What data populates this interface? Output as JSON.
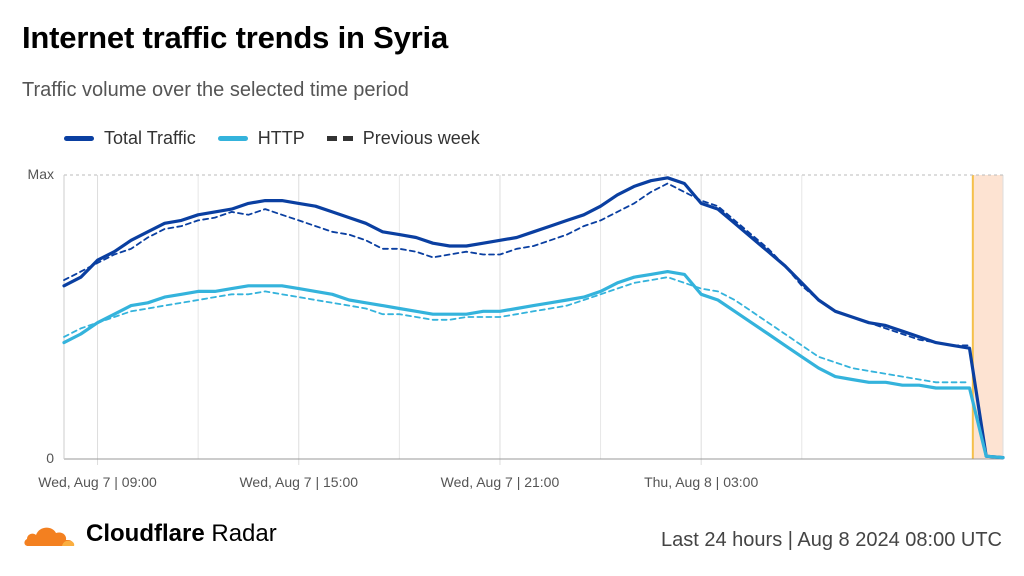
{
  "header": {
    "title": "Internet traffic trends in Syria",
    "subtitle": "Traffic volume over the selected time period"
  },
  "legend": {
    "total": "Total Traffic",
    "http": "HTTP",
    "previous": "Previous week"
  },
  "colors": {
    "total": "#0a3fa1",
    "http": "#34b3dc",
    "shade": "#fde3d2",
    "shade_edge": "#f5c04a",
    "grid": "#bbbbbb"
  },
  "footer": {
    "brand_bold": "Cloudflare",
    "brand_light": "Radar",
    "period": "Last 24 hours | Aug 8 2024 08:00 UTC"
  },
  "chart_data": {
    "type": "line",
    "x_label": "",
    "y_label": "",
    "y_ticks": [
      "Max",
      "0"
    ],
    "y_range": [
      0,
      100
    ],
    "x_range_hours": [
      8,
      31.5
    ],
    "x_ticks": [
      {
        "hour": 9,
        "label": "Wed, Aug 7 | 09:00"
      },
      {
        "hour": 15,
        "label": "Wed, Aug 7 | 15:00"
      },
      {
        "hour": 21,
        "label": "Wed, Aug 7 | 21:00"
      },
      {
        "hour": 27,
        "label": "Thu, Aug 8 | 03:00"
      }
    ],
    "minor_grid_hours": [
      12,
      18,
      24,
      30
    ],
    "shaded_region_hours": [
      29,
      31.5
    ],
    "series": [
      {
        "name": "Total Traffic",
        "style": "solid",
        "points": [
          [
            8,
            61
          ],
          [
            8.5,
            64
          ],
          [
            9,
            70
          ],
          [
            9.5,
            73
          ],
          [
            10,
            77
          ],
          [
            10.5,
            80
          ],
          [
            11,
            83
          ],
          [
            11.5,
            84
          ],
          [
            12,
            86
          ],
          [
            12.5,
            87
          ],
          [
            13,
            88
          ],
          [
            13.5,
            90
          ],
          [
            14,
            91
          ],
          [
            14.5,
            91
          ],
          [
            15,
            90
          ],
          [
            15.5,
            89
          ],
          [
            16,
            87
          ],
          [
            16.5,
            85
          ],
          [
            17,
            83
          ],
          [
            17.5,
            80
          ],
          [
            18,
            79
          ],
          [
            18.5,
            78
          ],
          [
            19,
            76
          ],
          [
            19.5,
            75
          ],
          [
            20,
            75
          ],
          [
            20.5,
            76
          ],
          [
            21,
            77
          ],
          [
            21.5,
            78
          ],
          [
            22,
            80
          ],
          [
            22.5,
            82
          ],
          [
            23,
            84
          ],
          [
            23.5,
            86
          ],
          [
            24,
            89
          ],
          [
            24.5,
            93
          ],
          [
            25,
            96
          ],
          [
            25.5,
            98
          ],
          [
            26,
            99
          ],
          [
            26.5,
            97
          ],
          [
            27,
            90
          ],
          [
            27.5,
            88
          ],
          [
            28,
            83
          ],
          [
            28.5,
            78
          ],
          [
            29,
            73
          ],
          [
            29.5,
            68
          ],
          [
            30,
            62
          ],
          [
            30.5,
            56
          ],
          [
            31,
            52
          ],
          [
            31.5,
            50
          ],
          [
            32,
            48
          ],
          [
            32.5,
            47
          ],
          [
            33,
            45
          ],
          [
            33.5,
            43
          ],
          [
            34,
            41
          ],
          [
            34.5,
            40
          ],
          [
            35,
            39
          ],
          [
            35.5,
            1
          ],
          [
            36,
            0.5
          ]
        ]
      },
      {
        "name": "HTTP",
        "style": "solid",
        "points": [
          [
            8,
            41
          ],
          [
            8.5,
            44
          ],
          [
            9,
            48
          ],
          [
            9.5,
            51
          ],
          [
            10,
            54
          ],
          [
            10.5,
            55
          ],
          [
            11,
            57
          ],
          [
            11.5,
            58
          ],
          [
            12,
            59
          ],
          [
            12.5,
            59
          ],
          [
            13,
            60
          ],
          [
            13.5,
            61
          ],
          [
            14,
            61
          ],
          [
            14.5,
            61
          ],
          [
            15,
            60
          ],
          [
            15.5,
            59
          ],
          [
            16,
            58
          ],
          [
            16.5,
            56
          ],
          [
            17,
            55
          ],
          [
            17.5,
            54
          ],
          [
            18,
            53
          ],
          [
            18.5,
            52
          ],
          [
            19,
            51
          ],
          [
            19.5,
            51
          ],
          [
            20,
            51
          ],
          [
            20.5,
            52
          ],
          [
            21,
            52
          ],
          [
            21.5,
            53
          ],
          [
            22,
            54
          ],
          [
            22.5,
            55
          ],
          [
            23,
            56
          ],
          [
            23.5,
            57
          ],
          [
            24,
            59
          ],
          [
            24.5,
            62
          ],
          [
            25,
            64
          ],
          [
            25.5,
            65
          ],
          [
            26,
            66
          ],
          [
            26.5,
            65
          ],
          [
            27,
            58
          ],
          [
            27.5,
            56
          ],
          [
            28,
            52
          ],
          [
            28.5,
            48
          ],
          [
            29,
            44
          ],
          [
            29.5,
            40
          ],
          [
            30,
            36
          ],
          [
            30.5,
            32
          ],
          [
            31,
            29
          ],
          [
            31.5,
            28
          ],
          [
            32,
            27
          ],
          [
            32.5,
            27
          ],
          [
            33,
            26
          ],
          [
            33.5,
            26
          ],
          [
            34,
            25
          ],
          [
            34.5,
            25
          ],
          [
            35,
            25
          ],
          [
            35.5,
            1
          ],
          [
            36,
            0.5
          ]
        ]
      },
      {
        "name": "Previous week",
        "style": "dashed",
        "points": [
          [
            8,
            63
          ],
          [
            8.5,
            66
          ],
          [
            9,
            69
          ],
          [
            9.5,
            72
          ],
          [
            10,
            74
          ],
          [
            10.5,
            78
          ],
          [
            11,
            81
          ],
          [
            11.5,
            82
          ],
          [
            12,
            84
          ],
          [
            12.5,
            85
          ],
          [
            13,
            87
          ],
          [
            13.5,
            86
          ],
          [
            14,
            88
          ],
          [
            14.5,
            86
          ],
          [
            15,
            84
          ],
          [
            15.5,
            82
          ],
          [
            16,
            80
          ],
          [
            16.5,
            79
          ],
          [
            17,
            77
          ],
          [
            17.5,
            74
          ],
          [
            18,
            74
          ],
          [
            18.5,
            73
          ],
          [
            19,
            71
          ],
          [
            19.5,
            72
          ],
          [
            20,
            73
          ],
          [
            20.5,
            72
          ],
          [
            21,
            72
          ],
          [
            21.5,
            74
          ],
          [
            22,
            75
          ],
          [
            22.5,
            77
          ],
          [
            23,
            79
          ],
          [
            23.5,
            82
          ],
          [
            24,
            84
          ],
          [
            24.5,
            87
          ],
          [
            25,
            90
          ],
          [
            25.5,
            94
          ],
          [
            26,
            97
          ],
          [
            26.5,
            94
          ],
          [
            27,
            91
          ],
          [
            27.5,
            89
          ],
          [
            28,
            84
          ],
          [
            28.5,
            79
          ],
          [
            29,
            74
          ],
          [
            29.5,
            68
          ],
          [
            30,
            61
          ],
          [
            30.5,
            56
          ],
          [
            31,
            52
          ],
          [
            31.5,
            50
          ],
          [
            32,
            48
          ],
          [
            32.5,
            46
          ],
          [
            33,
            44
          ],
          [
            33.5,
            42
          ],
          [
            34,
            41
          ],
          [
            34.5,
            40
          ],
          [
            35,
            40
          ]
        ]
      },
      {
        "name": "Previous week (HTTP)",
        "style": "dashed",
        "points": [
          [
            8,
            43
          ],
          [
            8.5,
            46
          ],
          [
            9,
            48
          ],
          [
            9.5,
            50
          ],
          [
            10,
            52
          ],
          [
            10.5,
            53
          ],
          [
            11,
            54
          ],
          [
            11.5,
            55
          ],
          [
            12,
            56
          ],
          [
            12.5,
            57
          ],
          [
            13,
            58
          ],
          [
            13.5,
            58
          ],
          [
            14,
            59
          ],
          [
            14.5,
            58
          ],
          [
            15,
            57
          ],
          [
            15.5,
            56
          ],
          [
            16,
            55
          ],
          [
            16.5,
            54
          ],
          [
            17,
            53
          ],
          [
            17.5,
            51
          ],
          [
            18,
            51
          ],
          [
            18.5,
            50
          ],
          [
            19,
            49
          ],
          [
            19.5,
            49
          ],
          [
            20,
            50
          ],
          [
            20.5,
            50
          ],
          [
            21,
            50
          ],
          [
            21.5,
            51
          ],
          [
            22,
            52
          ],
          [
            22.5,
            53
          ],
          [
            23,
            54
          ],
          [
            23.5,
            56
          ],
          [
            24,
            58
          ],
          [
            24.5,
            60
          ],
          [
            25,
            62
          ],
          [
            25.5,
            63
          ],
          [
            26,
            64
          ],
          [
            26.5,
            62
          ],
          [
            27,
            60
          ],
          [
            27.5,
            59
          ],
          [
            28,
            56
          ],
          [
            28.5,
            52
          ],
          [
            29,
            48
          ],
          [
            29.5,
            44
          ],
          [
            30,
            40
          ],
          [
            30.5,
            36
          ],
          [
            31,
            34
          ],
          [
            31.5,
            32
          ],
          [
            32,
            31
          ],
          [
            32.5,
            30
          ],
          [
            33,
            29
          ],
          [
            33.5,
            28
          ],
          [
            34,
            27
          ],
          [
            34.5,
            27
          ],
          [
            35,
            27
          ]
        ]
      }
    ]
  }
}
